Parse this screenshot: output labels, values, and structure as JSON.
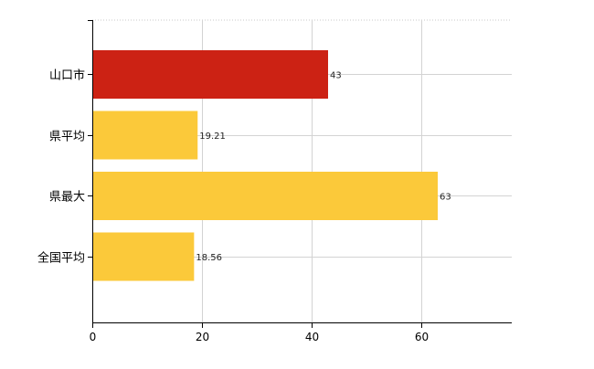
{
  "chart_data": {
    "type": "bar",
    "orientation": "horizontal",
    "categories": [
      "山口市",
      "県平均",
      "県最大",
      "全国平均"
    ],
    "values": [
      43,
      19.21,
      63,
      18.56
    ],
    "data_labels": [
      "43",
      "19.21",
      "63",
      "18.56"
    ],
    "bar_colors": [
      "#cc2214",
      "#fbc93a",
      "#fbc93a",
      "#fbc93a"
    ],
    "xlim": [
      0,
      75
    ],
    "xticks": [
      0,
      20,
      40,
      60
    ],
    "grid": true,
    "title": "",
    "xlabel": "",
    "ylabel": ""
  }
}
